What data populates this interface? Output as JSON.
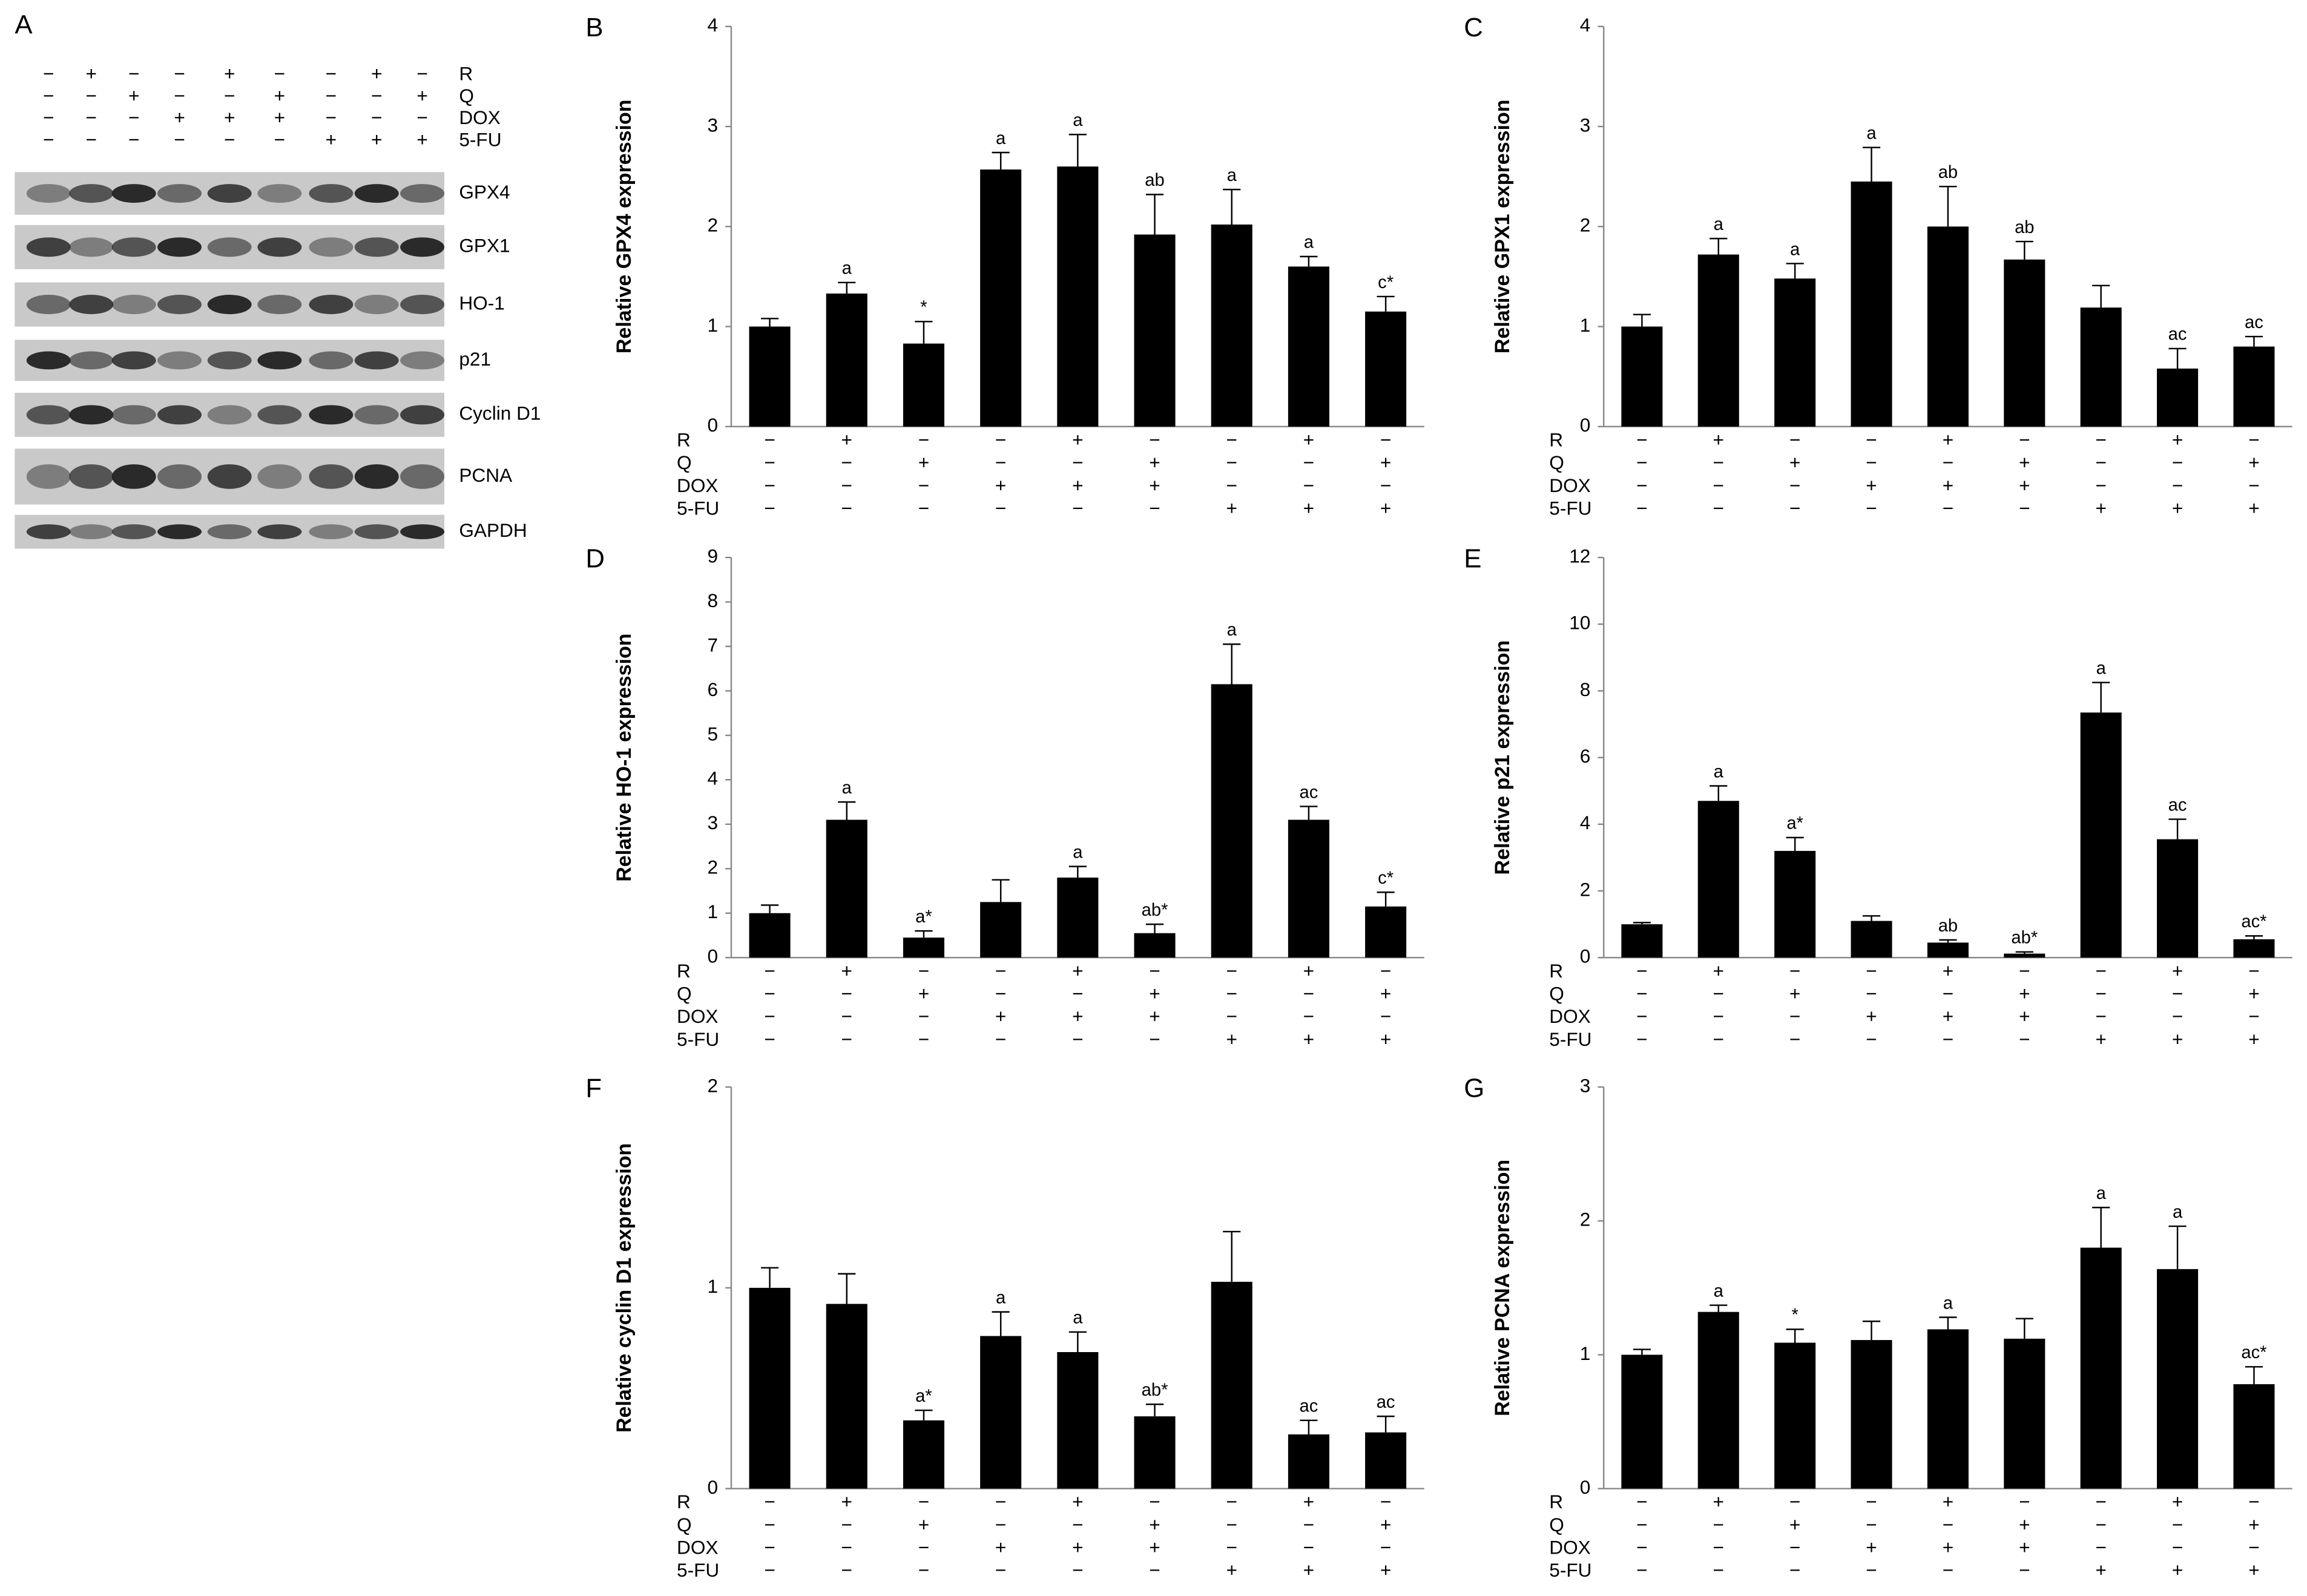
{
  "blot": {
    "label": "A",
    "treatments": [
      {
        "name": "R",
        "signs": [
          "−",
          "+",
          "−",
          "−",
          "+",
          "−",
          "−",
          "+",
          "−"
        ]
      },
      {
        "name": "Q",
        "signs": [
          "−",
          "−",
          "+",
          "−",
          "−",
          "+",
          "−",
          "−",
          "+"
        ]
      },
      {
        "name": "DOX",
        "signs": [
          "−",
          "−",
          "−",
          "+",
          "+",
          "+",
          "−",
          "−",
          "−"
        ]
      },
      {
        "name": "5-FU",
        "signs": [
          "−",
          "−",
          "−",
          "−",
          "−",
          "−",
          "+",
          "+",
          "+"
        ]
      }
    ],
    "proteins": [
      "GPX4",
      "GPX1",
      "HO-1",
      "p21",
      "Cyclin D1",
      "PCNA",
      "GAPDH"
    ]
  },
  "chart_data": [
    {
      "type": "bar",
      "label": "B",
      "ylabel": "Relative GPX4 expression",
      "color": "#000000",
      "values": [
        1.0,
        1.33,
        0.83,
        2.57,
        2.6,
        1.92,
        2.02,
        1.6,
        1.15
      ],
      "errors": [
        0.08,
        0.11,
        0.22,
        0.17,
        0.32,
        0.4,
        0.35,
        0.1,
        0.15
      ],
      "annotations": [
        null,
        "a",
        "*",
        "a",
        "a",
        "ab",
        "a",
        "a",
        "c*"
      ],
      "ylim": [
        0,
        4
      ],
      "yticks": [
        0,
        1,
        2,
        3,
        4
      ],
      "treatments": [
        {
          "name": "R",
          "signs": [
            "−",
            "+",
            "−",
            "−",
            "+",
            "−",
            "−",
            "+",
            "−"
          ]
        },
        {
          "name": "Q",
          "signs": [
            "−",
            "−",
            "+",
            "−",
            "−",
            "+",
            "−",
            "−",
            "+"
          ]
        },
        {
          "name": "DOX",
          "signs": [
            "−",
            "−",
            "−",
            "+",
            "+",
            "+",
            "−",
            "−",
            "−"
          ]
        },
        {
          "name": "5-FU",
          "signs": [
            "−",
            "−",
            "−",
            "−",
            "−",
            "−",
            "+",
            "+",
            "+"
          ]
        }
      ]
    },
    {
      "type": "bar",
      "label": "C",
      "ylabel": "Relative GPX1 expression",
      "color": "#000000",
      "values": [
        1.0,
        1.72,
        1.48,
        2.45,
        2.0,
        1.67,
        1.19,
        0.58,
        0.8
      ],
      "errors": [
        0.12,
        0.16,
        0.15,
        0.34,
        0.4,
        0.18,
        0.22,
        0.2,
        0.1
      ],
      "annotations": [
        null,
        "a",
        "a",
        "a",
        "ab",
        "ab",
        null,
        "ac",
        "ac"
      ],
      "ylim": [
        0,
        4
      ],
      "yticks": [
        0,
        1,
        2,
        3,
        4
      ],
      "treatments": [
        {
          "name": "R",
          "signs": [
            "−",
            "+",
            "−",
            "−",
            "+",
            "−",
            "−",
            "+",
            "−"
          ]
        },
        {
          "name": "Q",
          "signs": [
            "−",
            "−",
            "+",
            "−",
            "−",
            "+",
            "−",
            "−",
            "+"
          ]
        },
        {
          "name": "DOX",
          "signs": [
            "−",
            "−",
            "−",
            "+",
            "+",
            "+",
            "−",
            "−",
            "−"
          ]
        },
        {
          "name": "5-FU",
          "signs": [
            "−",
            "−",
            "−",
            "−",
            "−",
            "−",
            "+",
            "+",
            "+"
          ]
        }
      ]
    },
    {
      "type": "bar",
      "label": "D",
      "ylabel": "Relative HO-1 expression",
      "color": "#000000",
      "values": [
        1.0,
        3.1,
        0.45,
        1.25,
        1.8,
        0.55,
        6.15,
        3.1,
        1.15
      ],
      "errors": [
        0.18,
        0.4,
        0.15,
        0.5,
        0.25,
        0.2,
        0.9,
        0.3,
        0.32
      ],
      "annotations": [
        null,
        "a",
        "a*",
        null,
        "a",
        "ab*",
        "a",
        "ac",
        "c*"
      ],
      "ylim": [
        0,
        9
      ],
      "yticks": [
        0,
        1,
        2,
        3,
        4,
        5,
        6,
        7,
        8,
        9
      ],
      "treatments": [
        {
          "name": "R",
          "signs": [
            "−",
            "+",
            "−",
            "−",
            "+",
            "−",
            "−",
            "+",
            "−"
          ]
        },
        {
          "name": "Q",
          "signs": [
            "−",
            "−",
            "+",
            "−",
            "−",
            "+",
            "−",
            "−",
            "+"
          ]
        },
        {
          "name": "DOX",
          "signs": [
            "−",
            "−",
            "−",
            "+",
            "+",
            "+",
            "−",
            "−",
            "−"
          ]
        },
        {
          "name": "5-FU",
          "signs": [
            "−",
            "−",
            "−",
            "−",
            "−",
            "−",
            "+",
            "+",
            "+"
          ]
        }
      ]
    },
    {
      "type": "bar",
      "label": "E",
      "ylabel": "Relative p21 expression",
      "color": "#000000",
      "values": [
        1.0,
        4.7,
        3.2,
        1.1,
        0.45,
        0.12,
        7.35,
        3.55,
        0.55
      ],
      "errors": [
        0.05,
        0.45,
        0.4,
        0.15,
        0.08,
        0.05,
        0.9,
        0.6,
        0.1
      ],
      "annotations": [
        null,
        "a",
        "a*",
        null,
        "ab",
        "ab*",
        "a",
        "ac",
        "ac*"
      ],
      "ylim": [
        0,
        12
      ],
      "yticks": [
        0,
        2,
        4,
        6,
        8,
        10,
        12
      ],
      "treatments": [
        {
          "name": "R",
          "signs": [
            "−",
            "+",
            "−",
            "−",
            "+",
            "−",
            "−",
            "+",
            "−"
          ]
        },
        {
          "name": "Q",
          "signs": [
            "−",
            "−",
            "+",
            "−",
            "−",
            "+",
            "−",
            "−",
            "+"
          ]
        },
        {
          "name": "DOX",
          "signs": [
            "−",
            "−",
            "−",
            "+",
            "+",
            "+",
            "−",
            "−",
            "−"
          ]
        },
        {
          "name": "5-FU",
          "signs": [
            "−",
            "−",
            "−",
            "−",
            "−",
            "−",
            "+",
            "+",
            "+"
          ]
        }
      ]
    },
    {
      "type": "bar",
      "label": "F",
      "ylabel": "Relative cyclin D1 expression",
      "color": "#000000",
      "values": [
        1.0,
        0.92,
        0.34,
        0.76,
        0.68,
        0.36,
        1.03,
        0.27,
        0.28
      ],
      "errors": [
        0.1,
        0.15,
        0.05,
        0.12,
        0.1,
        0.06,
        0.25,
        0.07,
        0.08
      ],
      "annotations": [
        null,
        null,
        "a*",
        "a",
        "a",
        "ab*",
        null,
        "ac",
        "ac"
      ],
      "ylim": [
        0,
        2
      ],
      "yticks": [
        0,
        1,
        2
      ],
      "treatments": [
        {
          "name": "R",
          "signs": [
            "−",
            "+",
            "−",
            "−",
            "+",
            "−",
            "−",
            "+",
            "−"
          ]
        },
        {
          "name": "Q",
          "signs": [
            "−",
            "−",
            "+",
            "−",
            "−",
            "+",
            "−",
            "−",
            "+"
          ]
        },
        {
          "name": "DOX",
          "signs": [
            "−",
            "−",
            "−",
            "+",
            "+",
            "+",
            "−",
            "−",
            "−"
          ]
        },
        {
          "name": "5-FU",
          "signs": [
            "−",
            "−",
            "−",
            "−",
            "−",
            "−",
            "+",
            "+",
            "+"
          ]
        }
      ]
    },
    {
      "type": "bar",
      "label": "G",
      "ylabel": "Relative PCNA expression",
      "color": "#000000",
      "values": [
        1.0,
        1.32,
        1.09,
        1.11,
        1.19,
        1.12,
        1.8,
        1.64,
        0.78
      ],
      "errors": [
        0.04,
        0.05,
        0.1,
        0.14,
        0.09,
        0.15,
        0.3,
        0.32,
        0.13
      ],
      "annotations": [
        null,
        "a",
        "*",
        null,
        "a",
        null,
        "a",
        "a",
        "ac*"
      ],
      "ylim": [
        0,
        3
      ],
      "yticks": [
        0,
        1,
        2,
        3
      ],
      "treatments": [
        {
          "name": "R",
          "signs": [
            "−",
            "+",
            "−",
            "−",
            "+",
            "−",
            "−",
            "+",
            "−"
          ]
        },
        {
          "name": "Q",
          "signs": [
            "−",
            "−",
            "+",
            "−",
            "−",
            "+",
            "−",
            "−",
            "+"
          ]
        },
        {
          "name": "DOX",
          "signs": [
            "−",
            "−",
            "−",
            "+",
            "+",
            "+",
            "−",
            "−",
            "−"
          ]
        },
        {
          "name": "5-FU",
          "signs": [
            "−",
            "−",
            "−",
            "−",
            "−",
            "−",
            "+",
            "+",
            "+"
          ]
        }
      ]
    }
  ]
}
